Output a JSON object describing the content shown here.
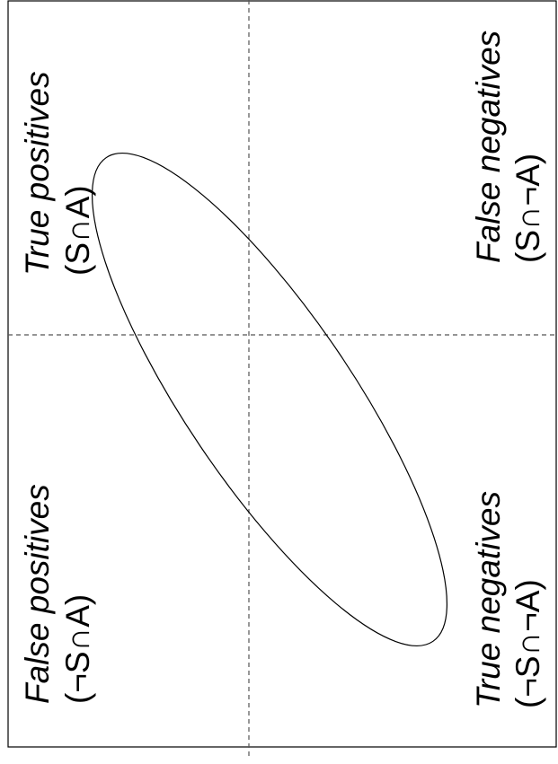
{
  "diagram": {
    "quadrants": [
      {
        "id": "top-left",
        "title": "True positives",
        "formula": "(S∩A)"
      },
      {
        "id": "top-right",
        "title": "False negatives",
        "formula": "(S∩¬A)"
      },
      {
        "id": "bottom-left",
        "title": "False positives",
        "formula": "(¬S∩A)"
      },
      {
        "id": "bottom-right",
        "title": "True negatives",
        "formula": "(¬S∩¬A)"
      }
    ],
    "colors": {
      "background": "#ffffff",
      "stroke": "#000000",
      "divider": "#555555",
      "text": "#000000"
    }
  }
}
